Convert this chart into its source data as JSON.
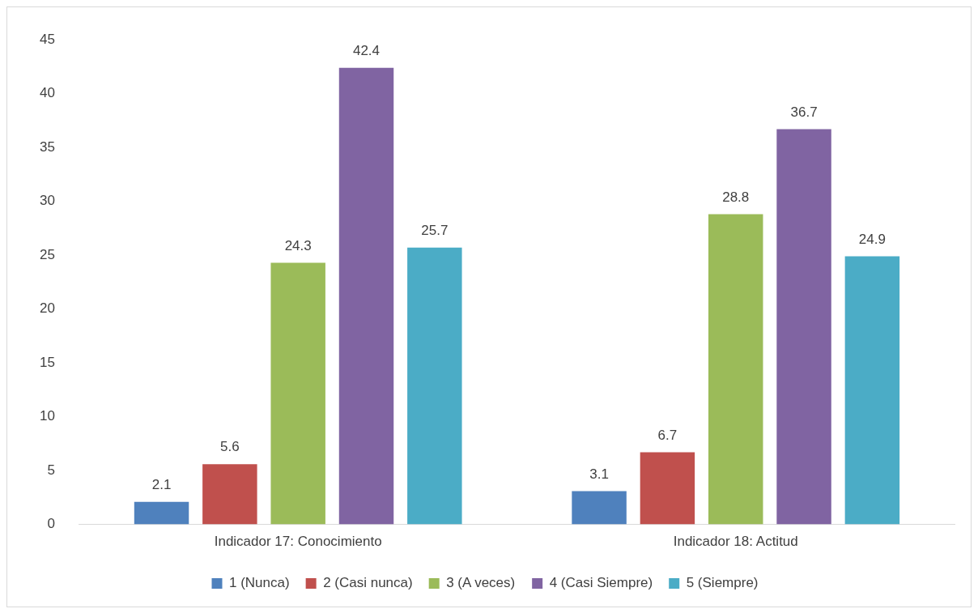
{
  "chart_data": {
    "type": "bar",
    "categories": [
      "Indicador 17: Conocimiento",
      "Indicador 18: Actitud"
    ],
    "series": [
      {
        "name": "1 (Nunca)",
        "color": "#4f81bd",
        "values": [
          2.1,
          3.1
        ]
      },
      {
        "name": "2 (Casi nunca)",
        "color": "#c0504d",
        "values": [
          5.6,
          6.7
        ]
      },
      {
        "name": "3 (A veces)",
        "color": "#9bbb59",
        "values": [
          24.3,
          28.8
        ]
      },
      {
        "name": "4 (Casi Siempre)",
        "color": "#8064a2",
        "values": [
          42.4,
          36.7
        ]
      },
      {
        "name": "5 (Siempre)",
        "color": "#4bacc6",
        "values": [
          25.7,
          24.9
        ]
      }
    ],
    "ylim": [
      0,
      45
    ],
    "yticks": [
      0,
      5,
      10,
      15,
      20,
      25,
      30,
      35,
      40,
      45
    ],
    "grid": false,
    "legend": "bottom",
    "data_labels": true
  }
}
